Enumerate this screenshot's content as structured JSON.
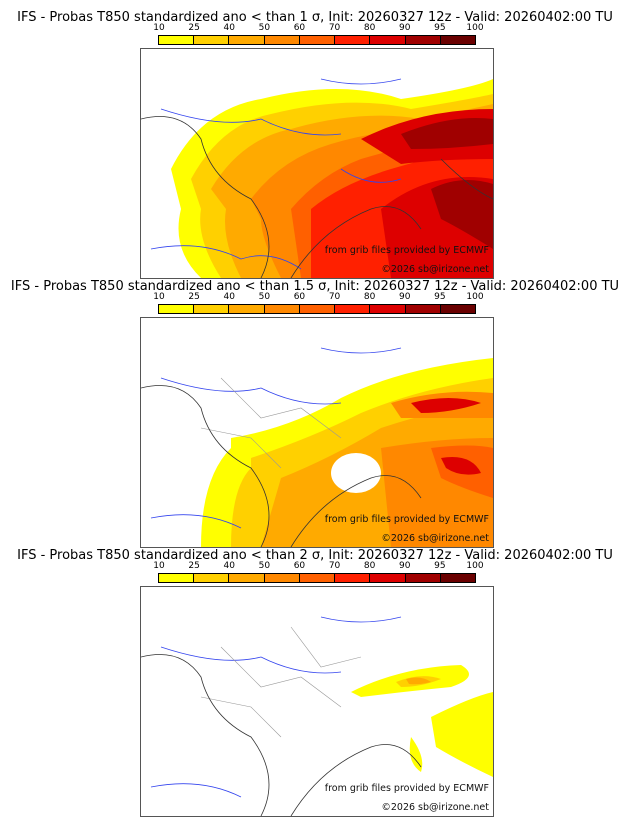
{
  "colorbar": {
    "ticks": [
      "10",
      "25",
      "40",
      "50",
      "60",
      "70",
      "80",
      "90",
      "95",
      "100"
    ],
    "colors": [
      "#ffff00",
      "#ffd000",
      "#ffaa00",
      "#ff8800",
      "#ff6000",
      "#ff2000",
      "#dd0000",
      "#a00000",
      "#6a0000"
    ]
  },
  "panels": [
    {
      "title": "IFS - Probas T850  standardized ano < than 1 σ, Init: 20260327 12z - Valid: 20260402:00 TU",
      "credit": "from grib files provided by ECMWF",
      "copyright": "©2026 sb@irizone.net"
    },
    {
      "title": "IFS - Probas T850  standardized ano < than 1.5 σ, Init: 20260327 12z - Valid: 20260402:00 TU",
      "credit": "from grib files provided by ECMWF",
      "copyright": "©2026 sb@irizone.net"
    },
    {
      "title": "IFS - Probas T850  standardized ano < than 2 σ, Init: 20260327 12z - Valid: 20260402:00 TU",
      "credit": "from grib files provided by ECMWF",
      "copyright": "©2026 sb@irizone.net"
    }
  ]
}
